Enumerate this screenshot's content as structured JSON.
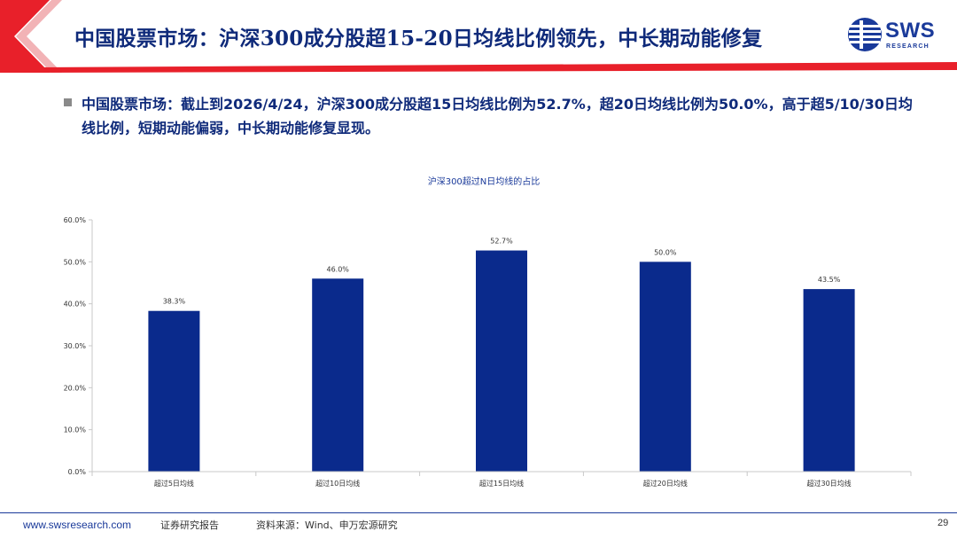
{
  "header": {
    "title": "中国股票市场：沪深300成分股超15-20日均线比例领先，中长期动能修复",
    "logo_text": "SWS",
    "logo_sub": "RESEARCH",
    "accent_red": "#e8202a",
    "title_color": "#0f2a7a"
  },
  "summary": {
    "text": "中国股票市场：截止到2026/4/24，沪深300成分股超15日均线比例为52.7%，超20日均线比例为50.0%，高于超5/10/30日均线比例，短期动能偏弱，中长期动能修复显现。"
  },
  "chart_data": {
    "type": "bar",
    "title": "沪深300超过N日均线的占比",
    "categories": [
      "超过5日均线",
      "超过10日均线",
      "超过15日均线",
      "超过20日均线",
      "超过30日均线"
    ],
    "values": [
      38.3,
      46.0,
      52.7,
      50.0,
      43.5
    ],
    "value_labels": [
      "38.3%",
      "46.0%",
      "52.7%",
      "50.0%",
      "43.5%"
    ],
    "y_ticks": [
      "0.0%",
      "10.0%",
      "20.0%",
      "30.0%",
      "40.0%",
      "50.0%",
      "60.0%"
    ],
    "ylim": [
      0,
      60
    ],
    "bar_color": "#0a2a8c",
    "grid": false,
    "xlabel": "",
    "ylabel": ""
  },
  "footer": {
    "site": "www.swsresearch.com",
    "report": "证券研究报告",
    "source": "资料来源：Wind、申万宏源研究",
    "page": "29"
  }
}
